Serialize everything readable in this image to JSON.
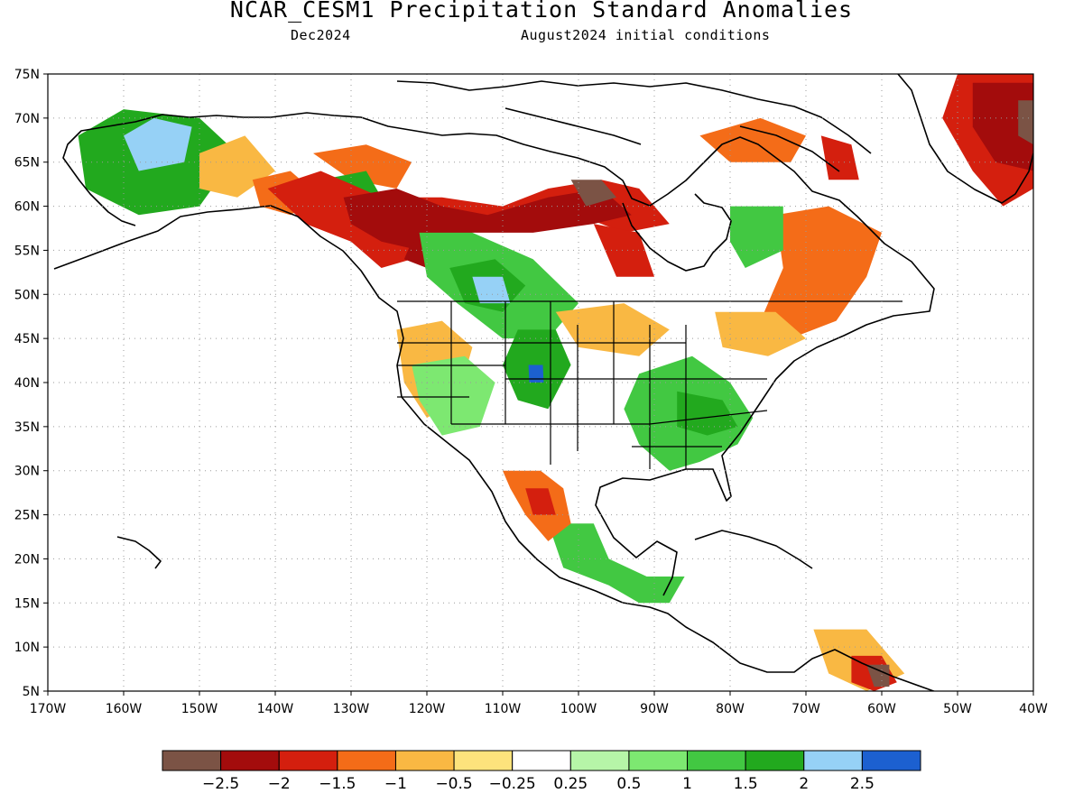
{
  "header": {
    "title": "NCAR_CESM1 Precipitation Standard Anomalies",
    "valid_month": "Dec2024",
    "init_label": "August2024 initial conditions"
  },
  "map": {
    "lon_range": [
      -170,
      -40
    ],
    "lat_range": [
      5,
      75
    ],
    "lat_ticks": [
      {
        "value": 75,
        "label": "75N"
      },
      {
        "value": 70,
        "label": "70N"
      },
      {
        "value": 65,
        "label": "65N"
      },
      {
        "value": 60,
        "label": "60N"
      },
      {
        "value": 55,
        "label": "55N"
      },
      {
        "value": 50,
        "label": "50N"
      },
      {
        "value": 45,
        "label": "45N"
      },
      {
        "value": 40,
        "label": "40N"
      },
      {
        "value": 35,
        "label": "35N"
      },
      {
        "value": 30,
        "label": "30N"
      },
      {
        "value": 25,
        "label": "25N"
      },
      {
        "value": 20,
        "label": "20N"
      },
      {
        "value": 15,
        "label": "15N"
      },
      {
        "value": 10,
        "label": "10N"
      },
      {
        "value": 5,
        "label": "5N"
      }
    ],
    "lon_ticks": [
      {
        "value": -170,
        "label": "170W"
      },
      {
        "value": -160,
        "label": "160W"
      },
      {
        "value": -150,
        "label": "150W"
      },
      {
        "value": -140,
        "label": "140W"
      },
      {
        "value": -130,
        "label": "130W"
      },
      {
        "value": -120,
        "label": "120W"
      },
      {
        "value": -110,
        "label": "110W"
      },
      {
        "value": -100,
        "label": "100W"
      },
      {
        "value": -90,
        "label": "90W"
      },
      {
        "value": -80,
        "label": "80W"
      },
      {
        "value": -70,
        "label": "70W"
      },
      {
        "value": -60,
        "label": "60W"
      },
      {
        "value": -50,
        "label": "50W"
      },
      {
        "value": -40,
        "label": "40W"
      }
    ],
    "grid": "dotted",
    "anomaly_regions": [
      {
        "level": 4,
        "poly": [
          [
            -166,
            68
          ],
          [
            -160,
            71
          ],
          [
            -150,
            70
          ],
          [
            -145,
            66
          ],
          [
            -150,
            60
          ],
          [
            -158,
            59
          ],
          [
            -165,
            62
          ]
        ]
      },
      {
        "level": 5,
        "poly": [
          [
            -160,
            68
          ],
          [
            -156,
            70
          ],
          [
            -151,
            69
          ],
          [
            -152,
            65
          ],
          [
            -158,
            64
          ]
        ]
      },
      {
        "level": -2,
        "poly": [
          [
            -150,
            66
          ],
          [
            -144,
            68
          ],
          [
            -140,
            64
          ],
          [
            -145,
            61
          ],
          [
            -150,
            62
          ]
        ]
      },
      {
        "level": -3,
        "poly": [
          [
            -143,
            63
          ],
          [
            -138,
            64
          ],
          [
            -134,
            61
          ],
          [
            -138,
            59
          ],
          [
            -142,
            60
          ]
        ]
      },
      {
        "level": -3,
        "poly": [
          [
            -135,
            66
          ],
          [
            -128,
            67
          ],
          [
            -122,
            65
          ],
          [
            -124,
            62
          ],
          [
            -130,
            63
          ]
        ]
      },
      {
        "level": 4,
        "poly": [
          [
            -134,
            63
          ],
          [
            -128,
            64
          ],
          [
            -126,
            61
          ],
          [
            -131,
            60
          ]
        ]
      },
      {
        "level": -4,
        "poly": [
          [
            -141,
            62
          ],
          [
            -134,
            64
          ],
          [
            -126,
            61
          ],
          [
            -118,
            61
          ],
          [
            -110,
            60
          ],
          [
            -104,
            62
          ],
          [
            -97,
            63
          ],
          [
            -92,
            62
          ],
          [
            -88,
            58
          ],
          [
            -94,
            57
          ],
          [
            -100,
            59
          ],
          [
            -108,
            58
          ],
          [
            -116,
            57
          ],
          [
            -122,
            54
          ],
          [
            -126,
            53
          ],
          [
            -130,
            56
          ],
          [
            -136,
            58
          ]
        ]
      },
      {
        "level": -5,
        "poly": [
          [
            -131,
            61
          ],
          [
            -124,
            62
          ],
          [
            -118,
            60
          ],
          [
            -112,
            59
          ],
          [
            -104,
            61
          ],
          [
            -97,
            62
          ],
          [
            -93,
            59
          ],
          [
            -98,
            58
          ],
          [
            -106,
            57
          ],
          [
            -114,
            57
          ],
          [
            -121,
            55
          ],
          [
            -126,
            56
          ],
          [
            -130,
            58
          ]
        ]
      },
      {
        "level": -6,
        "poly": [
          [
            -101,
            63
          ],
          [
            -97,
            63
          ],
          [
            -95,
            61
          ],
          [
            -99,
            60
          ]
        ]
      },
      {
        "level": -5,
        "poly": [
          [
            -122,
            56
          ],
          [
            -118,
            55
          ],
          [
            -120,
            53
          ],
          [
            -123,
            54
          ]
        ]
      },
      {
        "level": -4,
        "poly": [
          [
            -98,
            58
          ],
          [
            -92,
            57
          ],
          [
            -90,
            52
          ],
          [
            -95,
            52
          ]
        ]
      },
      {
        "level": -3,
        "poly": [
          [
            -84,
            68
          ],
          [
            -76,
            70
          ],
          [
            -70,
            68
          ],
          [
            -72,
            65
          ],
          [
            -80,
            65
          ]
        ]
      },
      {
        "level": -4,
        "poly": [
          [
            -68,
            68
          ],
          [
            -64,
            67
          ],
          [
            -63,
            63
          ],
          [
            -67,
            63
          ]
        ]
      },
      {
        "level": 3,
        "poly": [
          [
            -121,
            57
          ],
          [
            -114,
            57
          ],
          [
            -106,
            54
          ],
          [
            -100,
            49
          ],
          [
            -104,
            45
          ],
          [
            -110,
            45
          ],
          [
            -116,
            49
          ],
          [
            -120,
            52
          ]
        ]
      },
      {
        "level": 4,
        "poly": [
          [
            -117,
            53
          ],
          [
            -111,
            54
          ],
          [
            -107,
            51
          ],
          [
            -110,
            48
          ],
          [
            -115,
            49
          ]
        ]
      },
      {
        "level": 5,
        "poly": [
          [
            -114,
            52
          ],
          [
            -110,
            52
          ],
          [
            -109,
            49
          ],
          [
            -113,
            49
          ]
        ]
      },
      {
        "level": 4,
        "poly": [
          [
            -108,
            46
          ],
          [
            -103,
            46
          ],
          [
            -101,
            42
          ],
          [
            -104,
            37
          ],
          [
            -108,
            38
          ],
          [
            -110,
            42
          ]
        ]
      },
      {
        "level": 6,
        "poly": [
          [
            -106.6,
            42
          ],
          [
            -104.7,
            42
          ],
          [
            -104.6,
            40
          ],
          [
            -106.5,
            40
          ]
        ]
      },
      {
        "level": 3,
        "poly": [
          [
            -92,
            41
          ],
          [
            -85,
            43
          ],
          [
            -80,
            40
          ],
          [
            -77,
            36
          ],
          [
            -79,
            33
          ],
          [
            -84,
            31
          ],
          [
            -88,
            30
          ],
          [
            -92,
            33
          ],
          [
            -94,
            37
          ]
        ]
      },
      {
        "level": 4,
        "poly": [
          [
            -87,
            39
          ],
          [
            -81,
            38
          ],
          [
            -79,
            35
          ],
          [
            -83,
            34
          ],
          [
            -87,
            35
          ]
        ]
      },
      {
        "level": 3,
        "poly": [
          [
            -104,
            24
          ],
          [
            -98,
            24
          ],
          [
            -96,
            20
          ],
          [
            -91,
            18
          ],
          [
            -86,
            18
          ],
          [
            -88,
            15
          ],
          [
            -92,
            15
          ],
          [
            -96,
            17
          ],
          [
            -102,
            19
          ]
        ]
      },
      {
        "level": -3,
        "poly": [
          [
            -110,
            30
          ],
          [
            -105,
            30
          ],
          [
            -102,
            28
          ],
          [
            -101,
            24
          ],
          [
            -104,
            22
          ],
          [
            -107,
            25
          ],
          [
            -109,
            28
          ]
        ]
      },
      {
        "level": -4,
        "poly": [
          [
            -107,
            28
          ],
          [
            -104,
            28
          ],
          [
            -103,
            25
          ],
          [
            -106,
            25
          ]
        ]
      },
      {
        "level": -3,
        "poly": [
          [
            -74,
            59
          ],
          [
            -67,
            60
          ],
          [
            -60,
            57
          ],
          [
            -62,
            52
          ],
          [
            -66,
            47
          ],
          [
            -72,
            45
          ],
          [
            -76,
            47
          ],
          [
            -73,
            53
          ]
        ]
      },
      {
        "level": -2,
        "poly": [
          [
            -82,
            48
          ],
          [
            -74,
            48
          ],
          [
            -70,
            45
          ],
          [
            -75,
            43
          ],
          [
            -81,
            44
          ]
        ]
      },
      {
        "level": 3,
        "poly": [
          [
            -80,
            60
          ],
          [
            -73,
            60
          ],
          [
            -73,
            55
          ],
          [
            -78,
            53
          ],
          [
            -80,
            56
          ]
        ]
      },
      {
        "level": -4,
        "poly": [
          [
            -50,
            75
          ],
          [
            -40,
            75
          ],
          [
            -40,
            62
          ],
          [
            -44,
            60
          ],
          [
            -48,
            64
          ],
          [
            -52,
            70
          ]
        ]
      },
      {
        "level": -5,
        "poly": [
          [
            -48,
            74
          ],
          [
            -40,
            74
          ],
          [
            -40,
            64
          ],
          [
            -45,
            65
          ],
          [
            -48,
            69
          ]
        ]
      },
      {
        "level": -6,
        "poly": [
          [
            -42,
            72
          ],
          [
            -40,
            72
          ],
          [
            -40,
            67
          ],
          [
            -42,
            68
          ]
        ]
      },
      {
        "level": -2,
        "poly": [
          [
            -69,
            12
          ],
          [
            -62,
            12
          ],
          [
            -57,
            7
          ],
          [
            -62,
            5
          ],
          [
            -67,
            7
          ]
        ]
      },
      {
        "level": -4,
        "poly": [
          [
            -64,
            9
          ],
          [
            -60,
            9
          ],
          [
            -58,
            6
          ],
          [
            -61,
            5
          ],
          [
            -64,
            6
          ]
        ]
      },
      {
        "level": -6,
        "poly": [
          [
            -62,
            8
          ],
          [
            -59,
            8
          ],
          [
            -59,
            5.5
          ],
          [
            -61,
            5.5
          ]
        ]
      },
      {
        "level": -2,
        "poly": [
          [
            -124,
            46
          ],
          [
            -118,
            47
          ],
          [
            -114,
            44
          ],
          [
            -116,
            38
          ],
          [
            -120,
            36
          ],
          [
            -123,
            40
          ]
        ]
      },
      {
        "level": 2,
        "poly": [
          [
            -122,
            42
          ],
          [
            -115,
            43
          ],
          [
            -111,
            40
          ],
          [
            -113,
            35
          ],
          [
            -118,
            34
          ],
          [
            -121,
            38
          ]
        ]
      },
      {
        "level": -2,
        "poly": [
          [
            -103,
            48
          ],
          [
            -94,
            49
          ],
          [
            -88,
            46
          ],
          [
            -92,
            43
          ],
          [
            -100,
            44
          ]
        ]
      }
    ]
  },
  "colorbar": {
    "colors": [
      "#7b5345",
      "#a30c0c",
      "#d41f0e",
      "#f46c18",
      "#f9b843",
      "#fde37c",
      "#ffffff",
      "#b6f5a8",
      "#7de871",
      "#42c842",
      "#22a91e",
      "#96d1f6",
      "#1c60d0"
    ],
    "labels": [
      "−2.5",
      "−2",
      "−1.5",
      "−1",
      "−0.5",
      "−0.25",
      "0.25",
      "0.5",
      "1",
      "1.5",
      "2",
      "2.5"
    ]
  }
}
